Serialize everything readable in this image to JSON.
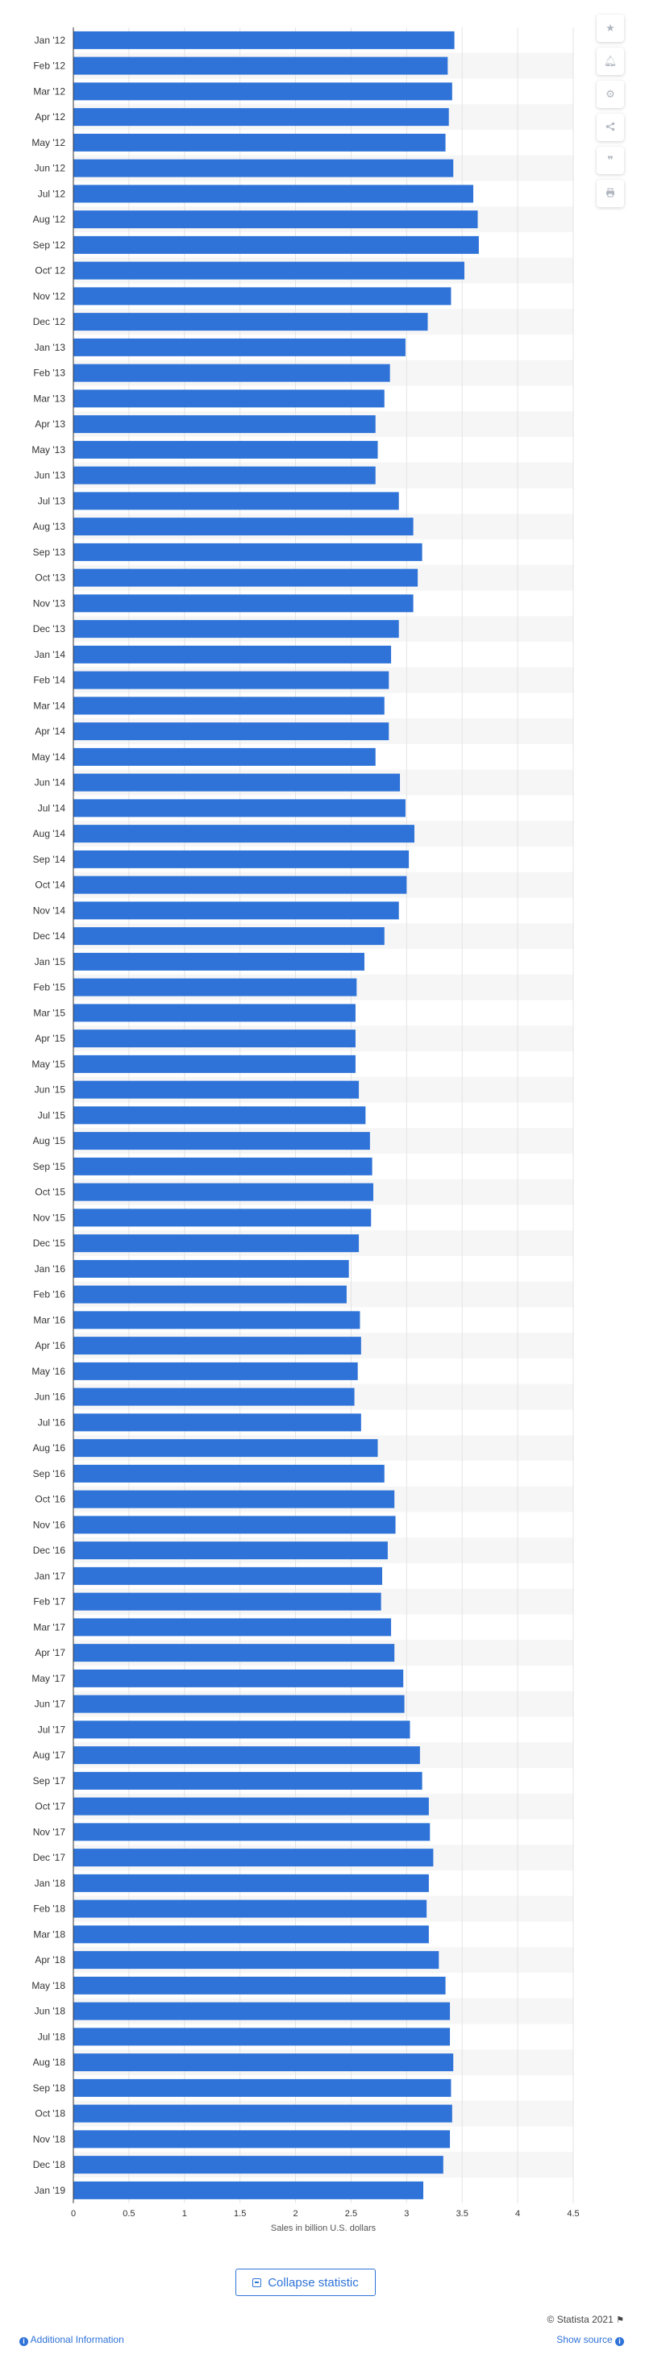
{
  "chart_data": {
    "type": "bar",
    "orientation": "horizontal",
    "categories": [
      "Jan '12",
      "Feb '12",
      "Mar '12",
      "Apr '12",
      "May '12",
      "Jun '12",
      "Jul '12",
      "Aug '12",
      "Sep '12",
      "Oct' 12",
      "Nov '12",
      "Dec '12",
      "Jan '13",
      "Feb '13",
      "Mar '13",
      "Apr '13",
      "May '13",
      "Jun '13",
      "Jul '13",
      "Aug '13",
      "Sep '13",
      "Oct '13",
      "Nov '13",
      "Dec '13",
      "Jan '14",
      "Feb '14",
      "Mar '14",
      "Apr '14",
      "May '14",
      "Jun '14",
      "Jul '14",
      "Aug '14",
      "Sep '14",
      "Oct '14",
      "Nov '14",
      "Dec '14",
      "Jan '15",
      "Feb '15",
      "Mar '15",
      "Apr '15",
      "May '15",
      "Jun '15",
      "Jul '15",
      "Aug '15",
      "Sep '15",
      "Oct '15",
      "Nov '15",
      "Dec '15",
      "Jan '16",
      "Feb '16",
      "Mar '16",
      "Apr '16",
      "May '16",
      "Jun '16",
      "Jul '16",
      "Aug '16",
      "Sep '16",
      "Oct '16",
      "Nov '16",
      "Dec '16",
      "Jan '17",
      "Feb '17",
      "Mar '17",
      "Apr '17",
      "May '17",
      "Jun '17",
      "Jul '17",
      "Aug '17",
      "Sep '17",
      "Oct '17",
      "Nov '17",
      "Dec '17",
      "Jan '18",
      "Feb '18",
      "Mar '18",
      "Apr '18",
      "May '18",
      "Jun '18",
      "Jul '18",
      "Aug '18",
      "Sep '18",
      "Oct '18",
      "Nov '18",
      "Dec '18",
      "Jan '19"
    ],
    "values": [
      3.43,
      3.37,
      3.41,
      3.38,
      3.35,
      3.42,
      3.6,
      3.64,
      3.65,
      3.52,
      3.4,
      3.19,
      2.99,
      2.85,
      2.8,
      2.72,
      2.74,
      2.72,
      2.93,
      3.06,
      3.14,
      3.1,
      3.06,
      2.93,
      2.86,
      2.84,
      2.8,
      2.84,
      2.72,
      2.94,
      2.99,
      3.07,
      3.02,
      3.0,
      2.93,
      2.8,
      2.62,
      2.55,
      2.54,
      2.54,
      2.54,
      2.57,
      2.63,
      2.67,
      2.69,
      2.7,
      2.68,
      2.57,
      2.48,
      2.46,
      2.58,
      2.59,
      2.56,
      2.53,
      2.59,
      2.74,
      2.8,
      2.89,
      2.9,
      2.83,
      2.78,
      2.77,
      2.86,
      2.89,
      2.97,
      2.98,
      3.03,
      3.12,
      3.14,
      3.2,
      3.21,
      3.24,
      3.2,
      3.18,
      3.2,
      3.29,
      3.35,
      3.39,
      3.39,
      3.42,
      3.4,
      3.41,
      3.39,
      3.33,
      3.15
    ],
    "xlabel": "Sales in billion U.S. dollars",
    "ylabel": "",
    "xlim": [
      0,
      4.5
    ],
    "xticks": [
      "0",
      "0.5",
      "1",
      "1.5",
      "2",
      "2.5",
      "3",
      "3.5",
      "4",
      "4.5"
    ],
    "grid": true,
    "bar_color": "#2f73d8",
    "stripe_color": "#f6f6f6"
  },
  "toolbar": {
    "icons": [
      "star-icon",
      "bell-icon",
      "gear-icon",
      "share-icon",
      "quote-icon",
      "print-icon"
    ],
    "glyphs": [
      "★",
      "🔔",
      "⚙",
      "<",
      "❝",
      "⎙"
    ]
  },
  "collapse_label": "Collapse statistic",
  "footer": {
    "copyright": "© Statista 2021",
    "additional_info": "Additional Information",
    "show_source": "Show source"
  }
}
